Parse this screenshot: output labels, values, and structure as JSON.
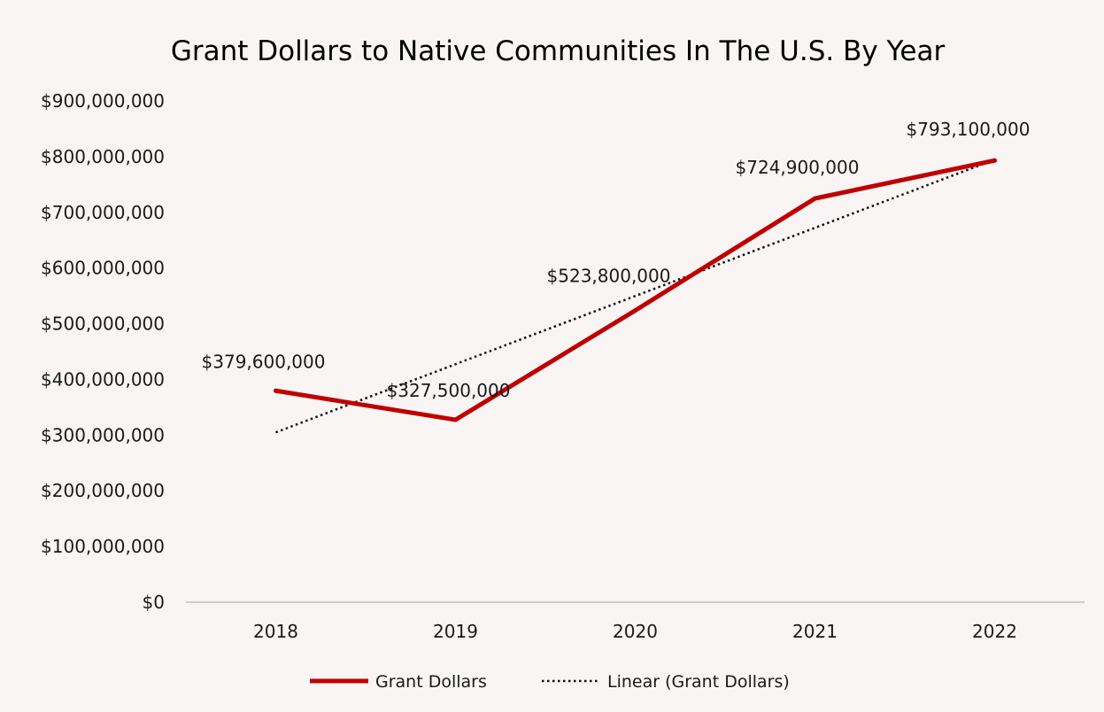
{
  "chart_data": {
    "type": "line",
    "title": "Grant Dollars to Native Communities In The U.S. By Year",
    "categories": [
      "2018",
      "2019",
      "2020",
      "2021",
      "2022"
    ],
    "series": [
      {
        "name": "Grant Dollars",
        "values": [
          379600000,
          327500000,
          523800000,
          724900000,
          793100000
        ],
        "data_labels": [
          "$379,600,000",
          "$327,500,000",
          "$523,800,000",
          "$724,900,000",
          "$793,100,000"
        ],
        "color": "#c00000",
        "style": "solid"
      },
      {
        "name": "Linear (Grant Dollars)",
        "trendline": "linear",
        "color": "#111111",
        "style": "dotted"
      }
    ],
    "ylim": [
      0,
      900000000
    ],
    "yticks": [
      0,
      100000000,
      200000000,
      300000000,
      400000000,
      500000000,
      600000000,
      700000000,
      800000000,
      900000000
    ],
    "ytick_labels": [
      "$0",
      "$100,000,000",
      "$200,000,000",
      "$300,000,000",
      "$400,000,000",
      "$500,000,000",
      "$600,000,000",
      "$700,000,000",
      "$800,000,000",
      "$900,000,000"
    ],
    "grid": false,
    "legend_position": "bottom",
    "background": "#f8f5f4"
  }
}
